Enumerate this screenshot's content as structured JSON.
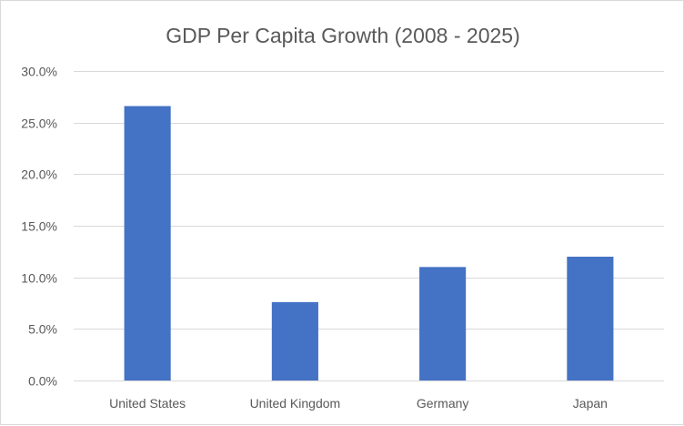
{
  "chart_data": {
    "type": "bar",
    "title": "GDP Per Capita Growth (2008 - 2025)",
    "xlabel": "",
    "ylabel": "",
    "categories": [
      "United States",
      "United Kingdom",
      "Germany",
      "Japan"
    ],
    "values": [
      26.6,
      7.6,
      11.0,
      12.0
    ],
    "value_format": "percent",
    "ylim": [
      0,
      30
    ],
    "yticks": [
      0,
      5,
      10,
      15,
      20,
      25,
      30
    ],
    "ytick_labels": [
      "0.0%",
      "5.0%",
      "10.0%",
      "15.0%",
      "20.0%",
      "25.0%",
      "30.0%"
    ],
    "grid": true,
    "legend": "none",
    "bar_color": "#4472c4",
    "gridline_color": "#d9d9d9",
    "text_color": "#595959"
  }
}
